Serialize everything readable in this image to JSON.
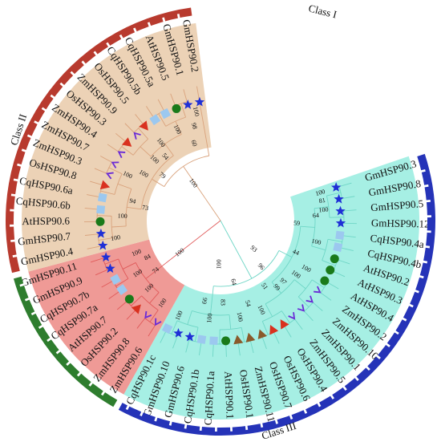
{
  "colors": {
    "class_i": "#b83a2e",
    "class_ii": "#2e7d2e",
    "class_iii": "#2533b8",
    "sector_i": "#ecd2b6",
    "sector_ii": "#ef9a96",
    "sector_iii": "#a6efe4",
    "branch_i": "#d9a27c",
    "branch_ii": "#e05a5a",
    "branch_iii": "#6fd6c6"
  },
  "classes": [
    {
      "label": "Class I",
      "color_key": "class_i"
    },
    {
      "label": "Class II",
      "color_key": "class_ii"
    },
    {
      "label": "Class III",
      "color_key": "class_iii"
    }
  ],
  "leaves": [
    {
      "name": "GmHSP90.3",
      "marker": "star-icon",
      "cls": 3
    },
    {
      "name": "GmHSP90.8",
      "marker": "star-icon",
      "cls": 3
    },
    {
      "name": "GmHSP90.5",
      "marker": "star-icon",
      "cls": 3
    },
    {
      "name": "GmHSP90.12",
      "marker": "star-icon",
      "cls": 3
    },
    {
      "name": "CqHSP90.4a",
      "marker": "square-icon",
      "cls": 3
    },
    {
      "name": "CqHSP90.4b",
      "marker": "square-icon",
      "cls": 3
    },
    {
      "name": "AtHSP90.2",
      "marker": "circle-icon",
      "cls": 3
    },
    {
      "name": "AtHSP90.3",
      "marker": "circle-icon",
      "cls": 3
    },
    {
      "name": "AtHSP90.4",
      "marker": "circle-icon",
      "cls": 3
    },
    {
      "name": "ZmHSP90.2",
      "marker": "check-icon",
      "cls": 3
    },
    {
      "name": "ZmHSP90.10",
      "marker": "check-icon",
      "cls": 3
    },
    {
      "name": "ZmHSP90.1",
      "marker": "check-icon",
      "cls": 3
    },
    {
      "name": "ZmHSP90.5",
      "marker": "check-icon",
      "cls": 3
    },
    {
      "name": "OsHSP90.4",
      "marker": "triangle-red-icon",
      "cls": 3
    },
    {
      "name": "OsHSP90.6",
      "marker": "triangle-red-icon",
      "cls": 3
    },
    {
      "name": "OsHSP90.7",
      "marker": "triangle-brown-icon",
      "cls": 3
    },
    {
      "name": "ZmHSP90.11",
      "marker": "triangle-brown-icon",
      "cls": 3
    },
    {
      "name": "OsHSP90.1",
      "marker": "triangle-brown-icon",
      "cls": 3
    },
    {
      "name": "AtHSP90.1",
      "marker": "circle-icon",
      "cls": 3
    },
    {
      "name": "CqHSP90.1a",
      "marker": "square-icon",
      "cls": 3
    },
    {
      "name": "CqHSP90.1b",
      "marker": "square-icon",
      "cls": 3
    },
    {
      "name": "GmHSP90.6",
      "marker": "star-icon",
      "cls": 3
    },
    {
      "name": "GmHSP90.10",
      "marker": "star-icon",
      "cls": 3
    },
    {
      "name": "CqHSP90.1c",
      "marker": "square-icon",
      "cls": 3
    },
    {
      "name": "ZmHSP90.6",
      "marker": "check-icon",
      "cls": 2
    },
    {
      "name": "ZmHSP90.8",
      "marker": "check-icon",
      "cls": 2
    },
    {
      "name": "OsHSP90.2",
      "marker": "triangle-red-icon",
      "cls": 2
    },
    {
      "name": "AtHSP90.7",
      "marker": "circle-icon",
      "cls": 2
    },
    {
      "name": "CqHSP90.7a",
      "marker": "square-icon",
      "cls": 2
    },
    {
      "name": "CqHSP90.7b",
      "marker": "square-icon",
      "cls": 2
    },
    {
      "name": "GmHSP90.9",
      "marker": "star-icon",
      "cls": 2
    },
    {
      "name": "GmHSP90.11",
      "marker": "star-icon",
      "cls": 2
    },
    {
      "name": "GmHSP90.4",
      "marker": "star-icon",
      "cls": 1
    },
    {
      "name": "GmHSP90.7",
      "marker": "star-icon",
      "cls": 1
    },
    {
      "name": "AtHSP90.6",
      "marker": "circle-icon",
      "cls": 1
    },
    {
      "name": "CqHSP90.6b",
      "marker": "square-icon",
      "cls": 1
    },
    {
      "name": "CqHSP90.6a",
      "marker": "square-icon",
      "cls": 1
    },
    {
      "name": "OsHSP90.8",
      "marker": "triangle-red-icon",
      "cls": 1
    },
    {
      "name": "ZmHSP90.3",
      "marker": "check-icon",
      "cls": 1
    },
    {
      "name": "ZmHSP90.7",
      "marker": "check-icon",
      "cls": 1
    },
    {
      "name": "ZmHSP90.4",
      "marker": "check-icon",
      "cls": 1
    },
    {
      "name": "OsHSP90.3",
      "marker": "triangle-red-icon",
      "cls": 1
    },
    {
      "name": "ZmHSP90.9",
      "marker": "check-icon",
      "cls": 1
    },
    {
      "name": "OsHSP90.5",
      "marker": "triangle-red-icon",
      "cls": 1
    },
    {
      "name": "CqHSP90.5b",
      "marker": "square-icon",
      "cls": 1
    },
    {
      "name": "CqHSP90.5a",
      "marker": "square-icon",
      "cls": 1
    },
    {
      "name": "AtHSP90.5",
      "marker": "circle-icon",
      "cls": 1
    },
    {
      "name": "GmHSP90.1",
      "marker": "star-icon",
      "cls": 1
    },
    {
      "name": "GmHSP90.2",
      "marker": "star-icon",
      "cls": 1
    }
  ],
  "bootstrap": [
    {
      "t": "81",
      "a": 0.9,
      "r": 0.76
    },
    {
      "t": "100",
      "a": 0.1,
      "r": 0.76
    },
    {
      "t": "64",
      "a": 2.3,
      "r": 0.7
    },
    {
      "t": "100",
      "a": 1.8,
      "r": 0.76
    },
    {
      "t": "59",
      "a": 3.2,
      "r": 0.56
    },
    {
      "t": "100",
      "a": 5.0,
      "r": 0.72
    },
    {
      "t": "44",
      "a": 6.8,
      "r": 0.6
    },
    {
      "t": "100",
      "a": 7.9,
      "r": 0.72
    },
    {
      "t": "100",
      "a": 9.0,
      "r": 0.68
    },
    {
      "t": "97",
      "a": 10.5,
      "r": 0.64
    },
    {
      "t": "99",
      "a": 11.5,
      "r": 0.64
    },
    {
      "t": "96",
      "a": 11.3,
      "r": 0.45
    },
    {
      "t": "51",
      "a": 12.6,
      "r": 0.58
    },
    {
      "t": "93",
      "a": 9.9,
      "r": 0.32
    },
    {
      "t": "100",
      "a": 14.2,
      "r": 0.72
    },
    {
      "t": "54",
      "a": 15.3,
      "r": 0.64
    },
    {
      "t": "100",
      "a": 16.5,
      "r": 0.72
    },
    {
      "t": "64",
      "a": 16.4,
      "r": 0.46
    },
    {
      "t": "83",
      "a": 18.2,
      "r": 0.6
    },
    {
      "t": "100",
      "a": 19.5,
      "r": 0.72
    },
    {
      "t": "66",
      "a": 20.3,
      "r": 0.6
    },
    {
      "t": "100",
      "a": 18.7,
      "r": 0.32
    },
    {
      "t": "100",
      "a": 22.5,
      "r": 0.76
    },
    {
      "t": "100",
      "a": 24.5,
      "r": 0.74
    },
    {
      "t": "100",
      "a": 26.5,
      "r": 0.72
    },
    {
      "t": "74",
      "a": 27.5,
      "r": 0.6
    },
    {
      "t": "100",
      "a": 28.4,
      "r": 0.72
    },
    {
      "t": "84",
      "a": 29.4,
      "r": 0.6
    },
    {
      "t": "100",
      "a": 30.4,
      "r": 0.66
    },
    {
      "t": "100",
      "a": 27.4,
      "r": 0.38
    },
    {
      "t": "100",
      "a": 32.4,
      "r": 0.78
    },
    {
      "t": "100",
      "a": 34.5,
      "r": 0.72
    },
    {
      "t": "73",
      "a": 35.7,
      "r": 0.56
    },
    {
      "t": "94",
      "a": 36.2,
      "r": 0.66
    },
    {
      "t": "100",
      "a": 38.6,
      "r": 0.76
    },
    {
      "t": "100",
      "a": 39.5,
      "r": 0.66
    },
    {
      "t": "100",
      "a": 41.5,
      "r": 0.66
    },
    {
      "t": "79",
      "a": 40.6,
      "r": 0.54
    },
    {
      "t": "54",
      "a": 42.6,
      "r": 0.62
    },
    {
      "t": "100",
      "a": 43.2,
      "r": 0.72
    },
    {
      "t": "100",
      "a": 45.3,
      "r": 0.74
    },
    {
      "t": "60",
      "a": 46.4,
      "r": 0.6
    },
    {
      "t": "98",
      "a": 47.0,
      "r": 0.72
    },
    {
      "t": "100",
      "a": 47.5,
      "r": 0.82
    },
    {
      "t": "100",
      "a": 43.4,
      "r": 0.34
    }
  ]
}
